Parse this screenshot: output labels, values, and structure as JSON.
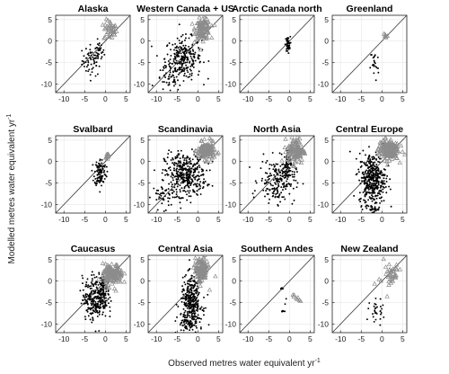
{
  "figure": {
    "xlabel_main": "Observed metres water equivalent yr",
    "xlabel_sup": "-1",
    "ylabel_main": "Modelled metres water equivalent yr",
    "ylabel_sup": "-1"
  },
  "colors": {
    "observed_black": "#000000",
    "triangle_grey": "#8c8c8c",
    "axis": "#222222"
  },
  "chart_data": [
    {
      "type": "scatter",
      "title": "Alaska",
      "xlim": [
        -12,
        6
      ],
      "ylim": [
        -12,
        6
      ],
      "xticks": [
        -10,
        -5,
        0,
        5
      ],
      "yticks": [
        -10,
        -5,
        0,
        5
      ],
      "one_to_one_line": true,
      "series": [
        {
          "marker": "dot",
          "clusters": [
            {
              "cx": -3.2,
              "cy": -4.5,
              "sx": 1.2,
              "sy": 1.8,
              "n": 60
            },
            {
              "cx": -1.5,
              "cy": -2.5,
              "sx": 0.6,
              "sy": 1.2,
              "n": 25
            }
          ]
        },
        {
          "marker": "triangle",
          "clusters": [
            {
              "cx": 1.2,
              "cy": 2.5,
              "sx": 0.8,
              "sy": 1.2,
              "n": 40
            }
          ]
        }
      ]
    },
    {
      "type": "scatter",
      "title": "Western Canada + US",
      "xlim": [
        -12,
        6
      ],
      "ylim": [
        -12,
        6
      ],
      "xticks": [
        -10,
        -5,
        0,
        5
      ],
      "yticks": [
        -10,
        -5,
        0,
        5
      ],
      "one_to_one_line": true,
      "series": [
        {
          "marker": "dot",
          "clusters": [
            {
              "cx": -3.5,
              "cy": -4,
              "sx": 2.2,
              "sy": 2.4,
              "n": 260
            },
            {
              "cx": -7,
              "cy": -9,
              "sx": 1.5,
              "sy": 1.5,
              "n": 40
            }
          ]
        },
        {
          "marker": "triangle",
          "clusters": [
            {
              "cx": 1.2,
              "cy": 2.8,
              "sx": 0.9,
              "sy": 1.2,
              "n": 120
            }
          ]
        }
      ]
    },
    {
      "type": "scatter",
      "title": "Arctic Canada north",
      "xlim": [
        -12,
        6
      ],
      "ylim": [
        -12,
        6
      ],
      "xticks": [
        -10,
        -5,
        0,
        5
      ],
      "yticks": [
        -10,
        -5,
        0,
        5
      ],
      "one_to_one_line": true,
      "series": [
        {
          "marker": "dot",
          "clusters": [
            {
              "cx": -0.4,
              "cy": -0.8,
              "sx": 0.3,
              "sy": 0.9,
              "n": 50
            }
          ]
        }
      ]
    },
    {
      "type": "scatter",
      "title": "Greenland",
      "xlim": [
        -12,
        6
      ],
      "ylim": [
        -12,
        6
      ],
      "xticks": [
        -10,
        -5,
        0,
        5
      ],
      "yticks": [
        -10,
        -5,
        0,
        5
      ],
      "one_to_one_line": true,
      "series": [
        {
          "marker": "dot",
          "clusters": [
            {
              "cx": -1.8,
              "cy": -5.5,
              "sx": 0.5,
              "sy": 2,
              "n": 22
            }
          ]
        },
        {
          "marker": "triangle",
          "clusters": [
            {
              "cx": 0.8,
              "cy": 1.2,
              "sx": 0.3,
              "sy": 0.6,
              "n": 8
            }
          ]
        }
      ]
    },
    {
      "type": "scatter",
      "title": "Svalbard",
      "xlim": [
        -12,
        6
      ],
      "ylim": [
        -12,
        6
      ],
      "xticks": [
        -10,
        -5,
        0,
        5
      ],
      "yticks": [
        -10,
        -5,
        0,
        5
      ],
      "one_to_one_line": true,
      "series": [
        {
          "marker": "dot",
          "clusters": [
            {
              "cx": -1.2,
              "cy": -2.5,
              "sx": 0.7,
              "sy": 1.6,
              "n": 110
            }
          ]
        },
        {
          "marker": "triangle",
          "clusters": [
            {
              "cx": 0.4,
              "cy": 1.2,
              "sx": 0.3,
              "sy": 0.5,
              "n": 10
            }
          ]
        }
      ]
    },
    {
      "type": "scatter",
      "title": "Scandinavia",
      "xlim": [
        -12,
        6
      ],
      "ylim": [
        -12,
        6
      ],
      "xticks": [
        -10,
        -5,
        0,
        5
      ],
      "yticks": [
        -10,
        -5,
        0,
        5
      ],
      "one_to_one_line": true,
      "series": [
        {
          "marker": "dot",
          "clusters": [
            {
              "cx": -3,
              "cy": -3,
              "sx": 2.5,
              "sy": 2.5,
              "n": 380
            },
            {
              "cx": -8,
              "cy": -8,
              "sx": 1.5,
              "sy": 1.5,
              "n": 50
            }
          ]
        },
        {
          "marker": "triangle",
          "clusters": [
            {
              "cx": 2,
              "cy": 2.5,
              "sx": 1,
              "sy": 1,
              "n": 150
            }
          ]
        }
      ]
    },
    {
      "type": "scatter",
      "title": "North Asia",
      "xlim": [
        -12,
        6
      ],
      "ylim": [
        -12,
        6
      ],
      "xticks": [
        -10,
        -5,
        0,
        5
      ],
      "yticks": [
        -10,
        -5,
        0,
        5
      ],
      "one_to_one_line": true,
      "series": [
        {
          "marker": "dot",
          "clusters": [
            {
              "cx": -3,
              "cy": -4.5,
              "sx": 2.2,
              "sy": 2.5,
              "n": 180
            },
            {
              "cx": -0.6,
              "cy": -1.5,
              "sx": 0.5,
              "sy": 2,
              "n": 70
            }
          ]
        },
        {
          "marker": "triangle",
          "clusters": [
            {
              "cx": 1.5,
              "cy": 2.5,
              "sx": 1,
              "sy": 1.5,
              "n": 120
            }
          ]
        }
      ]
    },
    {
      "type": "scatter",
      "title": "Central Europe",
      "xlim": [
        -12,
        6
      ],
      "ylim": [
        -12,
        6
      ],
      "xticks": [
        -10,
        -5,
        0,
        5
      ],
      "yticks": [
        -10,
        -5,
        0,
        5
      ],
      "one_to_one_line": true,
      "series": [
        {
          "marker": "dot",
          "clusters": [
            {
              "cx": -2.3,
              "cy": -4,
              "sx": 1.6,
              "sy": 3,
              "n": 400
            },
            {
              "cx": -2.5,
              "cy": -11,
              "sx": 0.8,
              "sy": 0.4,
              "n": 30
            }
          ]
        },
        {
          "marker": "triangle",
          "clusters": [
            {
              "cx": 1.6,
              "cy": 2.8,
              "sx": 1.2,
              "sy": 1.2,
              "n": 180
            }
          ]
        }
      ]
    },
    {
      "type": "scatter",
      "title": "Caucasus",
      "xlim": [
        -12,
        6
      ],
      "ylim": [
        -12,
        6
      ],
      "xticks": [
        -10,
        -5,
        0,
        5
      ],
      "yticks": [
        -10,
        -5,
        0,
        5
      ],
      "one_to_one_line": true,
      "series": [
        {
          "marker": "dot",
          "clusters": [
            {
              "cx": -2.5,
              "cy": -4,
              "sx": 1.5,
              "sy": 2.5,
              "n": 260
            },
            {
              "cx": -0.5,
              "cy": -2,
              "sx": 0.5,
              "sy": 2,
              "n": 80
            }
          ]
        },
        {
          "marker": "triangle",
          "clusters": [
            {
              "cx": 1.8,
              "cy": 1.5,
              "sx": 1.2,
              "sy": 1.2,
              "n": 150
            }
          ]
        }
      ]
    },
    {
      "type": "scatter",
      "title": "Central Asia",
      "xlim": [
        -12,
        6
      ],
      "ylim": [
        -12,
        6
      ],
      "xticks": [
        -10,
        -5,
        0,
        5
      ],
      "yticks": [
        -10,
        -5,
        0,
        5
      ],
      "one_to_one_line": true,
      "series": [
        {
          "marker": "dot",
          "clusters": [
            {
              "cx": -1.5,
              "cy": -5,
              "sx": 1.3,
              "sy": 3,
              "n": 330
            },
            {
              "cx": -2.5,
              "cy": -10,
              "sx": 1.2,
              "sy": 1,
              "n": 50
            }
          ]
        },
        {
          "marker": "triangle",
          "clusters": [
            {
              "cx": 0.8,
              "cy": 2.5,
              "sx": 0.8,
              "sy": 1.5,
              "n": 120
            }
          ]
        }
      ]
    },
    {
      "type": "scatter",
      "title": "Southern Andes",
      "xlim": [
        -12,
        6
      ],
      "ylim": [
        -12,
        6
      ],
      "xticks": [
        -10,
        -5,
        0,
        5
      ],
      "yticks": [
        -10,
        -5,
        0,
        5
      ],
      "one_to_one_line": true,
      "series": [
        {
          "marker": "dot",
          "clusters": [
            {
              "cx": -1.8,
              "cy": -1.7,
              "sx": 0.3,
              "sy": 0.1,
              "n": 5
            },
            {
              "cx": -1.5,
              "cy": -7,
              "sx": 0.3,
              "sy": 0.1,
              "n": 6
            },
            {
              "cx": -0.6,
              "cy": -4,
              "sx": 0.2,
              "sy": 0.5,
              "n": 2
            }
          ]
        },
        {
          "marker": "triangle",
          "clusters": [
            {
              "cx": 1.5,
              "cy": -3.5,
              "sx": 0.5,
              "sy": 0.8,
              "n": 8
            }
          ]
        }
      ]
    },
    {
      "type": "scatter",
      "title": "New Zealand",
      "xlim": [
        -12,
        6
      ],
      "ylim": [
        -12,
        6
      ],
      "xticks": [
        -10,
        -5,
        0,
        5
      ],
      "yticks": [
        -10,
        -5,
        0,
        5
      ],
      "one_to_one_line": true,
      "series": [
        {
          "marker": "dot",
          "clusters": [
            {
              "cx": -0.8,
              "cy": -7.5,
              "sx": 1,
              "sy": 1.5,
              "n": 30
            }
          ]
        },
        {
          "marker": "triangle",
          "clusters": [
            {
              "cx": 1.8,
              "cy": 1.5,
              "sx": 1.3,
              "sy": 1.8,
              "n": 40
            }
          ]
        }
      ]
    }
  ]
}
